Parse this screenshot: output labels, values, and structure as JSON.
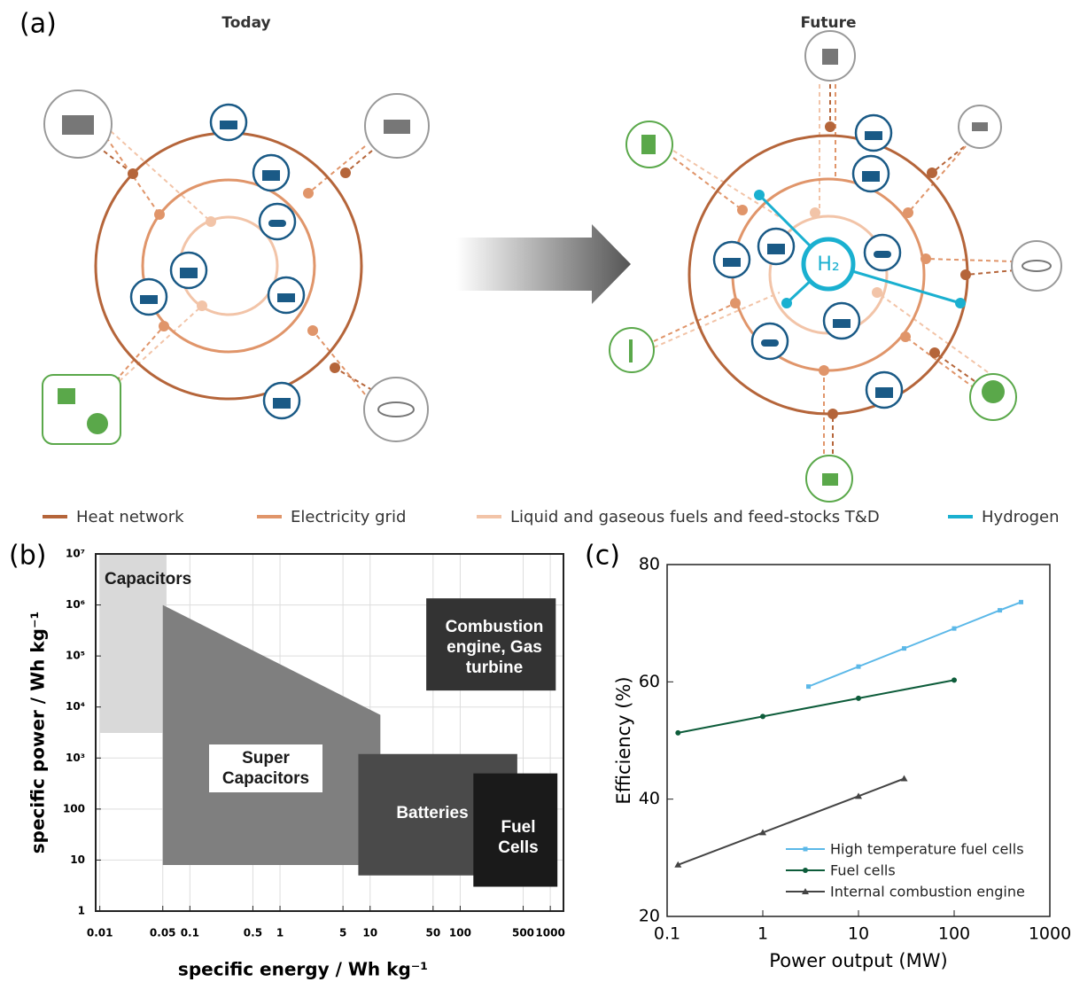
{
  "panel_a": {
    "label": "(a)",
    "today_title": "Today",
    "future_title": "Future",
    "hub_label": "H₂",
    "legend": [
      {
        "name": "Heat network",
        "color": "#b5653a"
      },
      {
        "name": "Electricity grid",
        "color": "#e0956a"
      },
      {
        "name": "Liquid and gaseous fuels and feed-stocks T&D",
        "color": "#f2c4a8"
      },
      {
        "name": "Hydrogen",
        "color": "#1ab0d0"
      }
    ]
  },
  "chart_data": [
    {
      "type": "region",
      "panel_label": "(b)",
      "x_label": "specific energy  /  Wh kg⁻¹",
      "y_label": "specific power  /  Wh kg⁻¹",
      "log_x": true,
      "log_y": true,
      "grid": true,
      "xlim": [
        0.009,
        1400
      ],
      "ylim": [
        1,
        10000000
      ],
      "xticks": [
        0.01,
        0.05,
        0.1,
        0.5,
        1,
        5,
        10,
        50,
        100,
        500,
        1000
      ],
      "yticks": [
        1,
        10,
        100,
        {
          "value": 1000,
          "label": "10³"
        },
        {
          "value": 10000,
          "label": "10⁴"
        },
        {
          "value": 100000,
          "label": "10⁵"
        },
        {
          "value": 1000000,
          "label": "10⁶"
        },
        {
          "value": 10000000,
          "label": "10⁷"
        }
      ],
      "regions": [
        {
          "name": "Capacitors",
          "color": "#d9d9d9",
          "text_color": "#1a1a1a",
          "x": [
            0.01,
            0.055,
            0.055,
            0.01
          ],
          "y": [
            10000000,
            10000000,
            3100,
            3100
          ]
        },
        {
          "name": "Super Capacitors",
          "color": "#7f7f7f",
          "text_color": "#1a1a1a",
          "x": [
            0.05,
            13,
            13,
            0.05
          ],
          "y": [
            1000000,
            7000,
            8,
            8
          ]
        },
        {
          "name": "Batteries",
          "color": "#4a4a4a",
          "text_color": "#ffffff",
          "x": [
            7.4,
            430,
            430,
            7.4
          ],
          "y": [
            1200,
            1200,
            5,
            5
          ]
        },
        {
          "name": "Fuel Cells",
          "color": "#1a1a1a",
          "text_color": "#ffffff",
          "x": [
            140,
            1200,
            1200,
            140
          ],
          "y": [
            500,
            500,
            3,
            3
          ]
        },
        {
          "name": "Combustion engine, Gas turbine",
          "color": "#333333",
          "text_color": "#ffffff",
          "x": [
            42,
            1150,
            1150,
            42
          ],
          "y": [
            1350000,
            1350000,
            21000,
            21000
          ]
        }
      ]
    },
    {
      "type": "line",
      "panel_label": "(c)",
      "x_label": "Power output (MW)",
      "y_label": "Efficiency (%)",
      "log_x": true,
      "xlim": [
        0.1,
        1000
      ],
      "ylim": [
        20,
        80
      ],
      "xticks": [
        0.1,
        1,
        10,
        100,
        1000
      ],
      "yticks": [
        20,
        40,
        60,
        80
      ],
      "legend": "lower right",
      "series": [
        {
          "name": "High temperature fuel cells",
          "color": "#5bb8e8",
          "marker": "square",
          "x": [
            3,
            10,
            30,
            100,
            300,
            500
          ],
          "values": [
            59.2,
            62.6,
            65.7,
            69.1,
            72.2,
            73.6
          ]
        },
        {
          "name": "Fuel cells",
          "color": "#0d5c3a",
          "marker": "circle",
          "x": [
            0.13,
            1,
            10,
            100
          ],
          "values": [
            51.3,
            54.1,
            57.2,
            60.3
          ]
        },
        {
          "name": "Internal combustion engine",
          "color": "#444444",
          "marker": "triangle",
          "x": [
            0.13,
            1,
            10,
            30
          ],
          "values": [
            28.8,
            34.3,
            40.5,
            43.5
          ]
        }
      ]
    }
  ]
}
